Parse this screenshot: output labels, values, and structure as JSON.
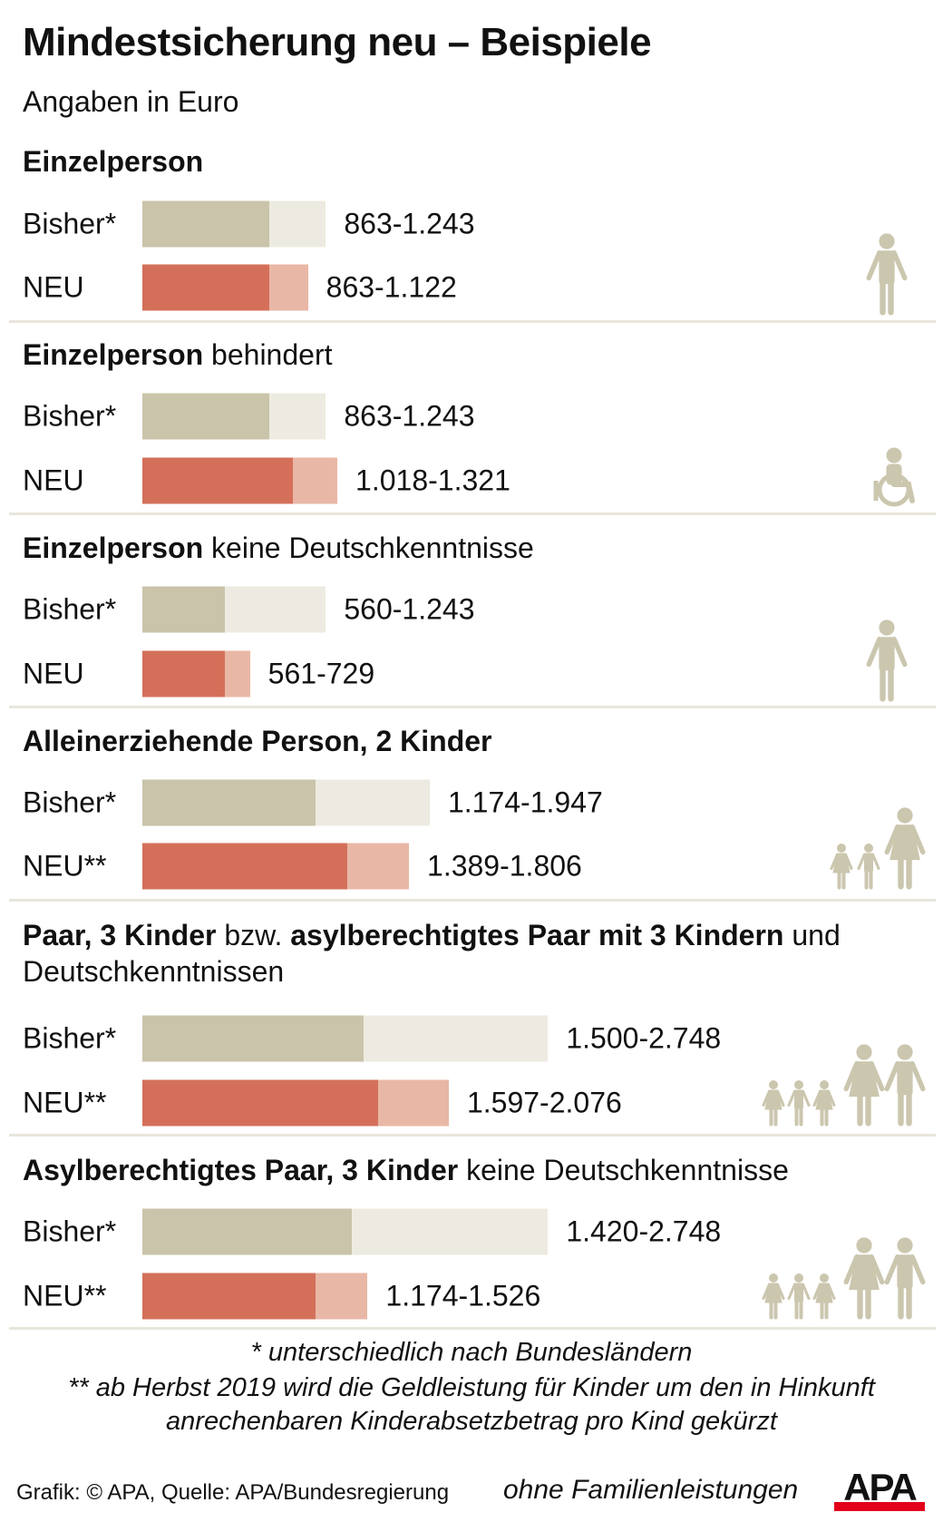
{
  "title": "Mindestsicherung neu – Beispiele",
  "subtitle": "Angaben in Euro",
  "colors": {
    "bisher_min": "#c9c4aa",
    "bisher_max": "#edebe1",
    "neu_min": "#d4705a",
    "neu_max": "#e9b7a6",
    "icon": "#cbc6ae",
    "separator": "#e8e6dc",
    "logo_red": "#e2001a"
  },
  "chart_data": {
    "type": "bar",
    "orientation": "horizontal",
    "stacked_range": true,
    "groups": [
      {
        "header": [
          {
            "text": "Einzelperson",
            "bold": true
          }
        ],
        "icon": "person-icon",
        "rows": [
          {
            "label": "Bisher*",
            "min": 863,
            "max": 1243,
            "text": "863-1.243"
          },
          {
            "label": "NEU",
            "min": 863,
            "max": 1122,
            "text": "863-1.122"
          }
        ]
      },
      {
        "header": [
          {
            "text": "Einzelperson",
            "bold": true
          },
          {
            "text": " behindert",
            "bold": false
          }
        ],
        "icon": "wheelchair-icon",
        "rows": [
          {
            "label": "Bisher*",
            "min": 863,
            "max": 1243,
            "text": "863-1.243"
          },
          {
            "label": "NEU",
            "min": 1018,
            "max": 1321,
            "text": "1.018-1.321"
          }
        ]
      },
      {
        "header": [
          {
            "text": "Einzelperson",
            "bold": true
          },
          {
            "text": " keine Deutschkenntnisse",
            "bold": false
          }
        ],
        "icon": "person-icon",
        "rows": [
          {
            "label": "Bisher*",
            "min": 560,
            "max": 1243,
            "text": "560-1.243"
          },
          {
            "label": "NEU",
            "min": 561,
            "max": 729,
            "text": "561-729"
          }
        ]
      },
      {
        "header": [
          {
            "text": "Alleinerziehende Person, 2 Kinder",
            "bold": true
          }
        ],
        "icon": "single-parent-two-children-icon",
        "rows": [
          {
            "label": "Bisher*",
            "min": 1174,
            "max": 1947,
            "text": "1.174-1.947"
          },
          {
            "label": "NEU**",
            "min": 1389,
            "max": 1806,
            "text": "1.389-1.806"
          }
        ]
      },
      {
        "header": [
          {
            "text": "Paar, 3 Kinder",
            "bold": true
          },
          {
            "text": " bzw. ",
            "bold": false
          },
          {
            "text": "asylberechtigtes Paar mit 3 Kindern",
            "bold": true
          },
          {
            "text": " und Deutschkenntnissen",
            "bold": false
          }
        ],
        "icon": "couple-three-children-icon",
        "rows": [
          {
            "label": "Bisher*",
            "min": 1500,
            "max": 2748,
            "text": "1.500-2.748"
          },
          {
            "label": "NEU**",
            "min": 1597,
            "max": 2076,
            "text": "1.597-2.076"
          }
        ]
      },
      {
        "header": [
          {
            "text": "Asylberechtigtes Paar, 3 Kinder",
            "bold": true
          },
          {
            "text": " keine Deutschkenntnisse",
            "bold": false
          }
        ],
        "icon": "couple-three-children-icon",
        "rows": [
          {
            "label": "Bisher*",
            "min": 1420,
            "max": 2748,
            "text": "1.420-2.748"
          },
          {
            "label": "NEU**",
            "min": 1174,
            "max": 1526,
            "text": "1.174-1.526"
          }
        ]
      }
    ]
  },
  "footnotes": [
    "* unterschiedlich nach Bundesländern",
    "** ab Herbst 2019 wird die Geldleistung für Kinder um den in Hinkunft",
    "anrechenbaren Kinderabsetzbetrag pro Kind gekürzt"
  ],
  "credit": "Grafik: © APA, Quelle: APA/Bundesregierung",
  "note": "ohne Familienleistungen",
  "logo": "APA"
}
